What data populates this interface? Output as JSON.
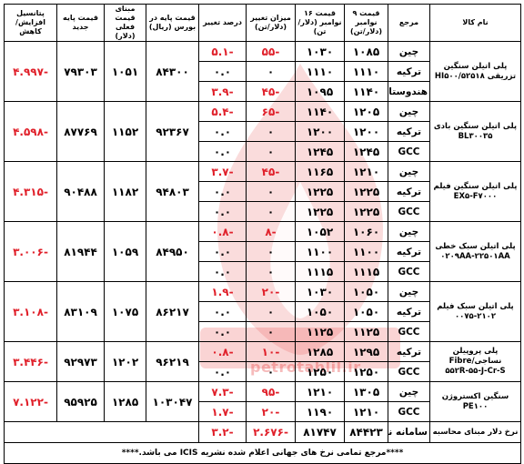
{
  "headers": {
    "product": "نام کالا",
    "origin": "مرجع",
    "price_nov9": "قیمت ۹ نوامبر (دلار/تن)",
    "price_nov16": "قیمت ۱۶ نوامبر (دلار/تن)",
    "change_amount": "میزان تغییر (دلار/تن)",
    "change_percent": "درصد تغییر",
    "exchange_base": "قیمت پایه در بورس (ریال)",
    "current_base_dollar": "مبنای قیمت فعلی (دلار)",
    "new_base": "قیمت پایه جدید",
    "potential": "پتانسیل افزایش/کاهش"
  },
  "groups": [
    {
      "product": "پلی اتیلن سنگین تزریقی HI۵۰۰/۵۲۵۱۸",
      "potential": "-۴.۹۹۷",
      "new_base": "۷۹۳۰۳",
      "current_base_dollar": "۱۰۵۱",
      "exchange_base": "۸۴۳۰۰",
      "rows": [
        {
          "percent": "-۵.۱",
          "change": "-۵۵",
          "nov16": "۱۰۳۰",
          "nov9": "۱۰۸۵",
          "origin": "چین",
          "red": true
        },
        {
          "percent": "۰.۰",
          "change": "۰",
          "nov16": "۱۱۱۰",
          "nov9": "۱۱۱۰",
          "origin": "ترکیه",
          "red": false
        },
        {
          "percent": "-۳.۹",
          "change": "-۴۵",
          "nov16": "۱۰۹۵",
          "nov9": "۱۱۴۰",
          "origin": "هندوستان",
          "red": true
        }
      ]
    },
    {
      "product": "پلی اتیلن سنگین بادی BL۳۰۰۳۵",
      "potential": "-۴.۵۹۸",
      "new_base": "۸۷۷۶۹",
      "current_base_dollar": "۱۱۵۲",
      "exchange_base": "۹۲۳۶۷",
      "rows": [
        {
          "percent": "-۵.۴",
          "change": "-۶۵",
          "nov16": "۱۱۴۰",
          "nov9": "۱۲۰۵",
          "origin": "چین",
          "red": true
        },
        {
          "percent": "۰.۰",
          "change": "۰",
          "nov16": "۱۲۰۰",
          "nov9": "۱۲۰۰",
          "origin": "ترکیه",
          "red": false
        },
        {
          "percent": "۰.۰",
          "change": "۰",
          "nov16": "۱۲۴۵",
          "nov9": "۱۲۴۵",
          "origin": "GCC",
          "red": false
        }
      ]
    },
    {
      "product": "پلی اتیلن سنگین فیلم EX۵-F۷۰۰۰",
      "potential": "-۴.۳۱۵",
      "new_base": "۹۰۴۸۸",
      "current_base_dollar": "۱۱۸۲",
      "exchange_base": "۹۴۸۰۳",
      "rows": [
        {
          "percent": "-۳.۷",
          "change": "-۴۵",
          "nov16": "۱۱۶۵",
          "nov9": "۱۲۱۰",
          "origin": "چین",
          "red": true
        },
        {
          "percent": "۰.۰",
          "change": "۰",
          "nov16": "۱۲۲۵",
          "nov9": "۱۲۲۵",
          "origin": "ترکیه",
          "red": false
        },
        {
          "percent": "۰.۰",
          "change": "۰",
          "nov16": "۱۲۲۵",
          "nov9": "۱۲۲۵",
          "origin": "GCC",
          "red": false
        }
      ]
    },
    {
      "product": "پلی اتیلن سبک خطی ۰۲۰۹AA-۲۲۵۰۱AA",
      "potential": "-۳.۰۰۶",
      "new_base": "۸۱۹۴۴",
      "current_base_dollar": "۱۰۵۹",
      "exchange_base": "۸۴۹۵۰",
      "rows": [
        {
          "percent": "-۰.۸",
          "change": "-۸",
          "nov16": "۱۰۵۲",
          "nov9": "۱۰۶۰",
          "origin": "چین",
          "red": true
        },
        {
          "percent": "۰.۰",
          "change": "۰",
          "nov16": "۱۱۰۰",
          "nov9": "۱۱۰۰",
          "origin": "ترکیه",
          "red": false
        },
        {
          "percent": "۰.۰",
          "change": "۰",
          "nov16": "۱۱۱۵",
          "nov9": "۱۱۱۵",
          "origin": "GCC",
          "red": false
        }
      ]
    },
    {
      "product": "پلی اتیلن سبک فیلم ۲۱۰۲-۰۰۷۵",
      "potential": "-۳.۱۰۸",
      "new_base": "۸۳۱۰۹",
      "current_base_dollar": "۱۰۷۵",
      "exchange_base": "۸۶۲۱۷",
      "rows": [
        {
          "percent": "-۱.۹",
          "change": "-۲۰",
          "nov16": "۱۰۳۰",
          "nov9": "۱۰۵۰",
          "origin": "چین",
          "red": true
        },
        {
          "percent": "۰.۰",
          "change": "۰",
          "nov16": "۱۰۵۰",
          "nov9": "۱۰۵۰",
          "origin": "ترکیه",
          "red": false
        },
        {
          "percent": "۰.۰",
          "change": "۰",
          "nov16": "۱۱۲۵",
          "nov9": "۱۱۲۵",
          "origin": "GCC",
          "red": false
        }
      ]
    },
    {
      "product": "پلی پروپیلن نساجی/Fibre ۵۵۲R-۵۵-J-Cr-S",
      "potential": "-۳.۴۴۶",
      "new_base": "۹۲۹۷۳",
      "current_base_dollar": "۱۲۰۲",
      "exchange_base": "۹۶۲۱۹",
      "rows": [
        {
          "percent": "-۰.۸",
          "change": "-۱۰",
          "nov16": "۱۲۸۵",
          "nov9": "۱۲۹۵",
          "origin": "ترکیه",
          "red": true
        },
        {
          "percent": "۰.۰",
          "change": "۰",
          "nov16": "۱۲۵۰",
          "nov9": "۱۲۵۰",
          "origin": "GCC",
          "red": false
        }
      ]
    },
    {
      "product": "سنگین اکستروژن PE۱۰۰",
      "potential": "-۷.۱۲۲",
      "new_base": "۹۵۹۲۵",
      "current_base_dollar": "۱۲۸۵",
      "exchange_base": "۱۰۳۰۴۷",
      "rows": [
        {
          "percent": "-۷.۳",
          "change": "-۹۵",
          "nov16": "۱۲۱۰",
          "nov9": "۱۳۰۵",
          "origin": "چین",
          "red": true
        },
        {
          "percent": "-۱.۷",
          "change": "-۲۰",
          "nov16": "۱۱۹۰",
          "nov9": "۱۲۱۰",
          "origin": "GCC",
          "red": true
        }
      ]
    }
  ],
  "summary": {
    "label": "نرخ دلار مبنای محاسبه",
    "source": "سامانه نیما",
    "nov9": "۸۴۴۲۳",
    "nov16": "۸۱۷۴۷",
    "change": "-۲.۶۷۶",
    "percent": "-۳.۲"
  },
  "note": "****مرجع تمامی نرخ های جهانی اعلام شده نشریه ICIS می باشد.****",
  "watermark": {
    "text": "petrotahlil.ir",
    "color": "#e23b3b"
  }
}
